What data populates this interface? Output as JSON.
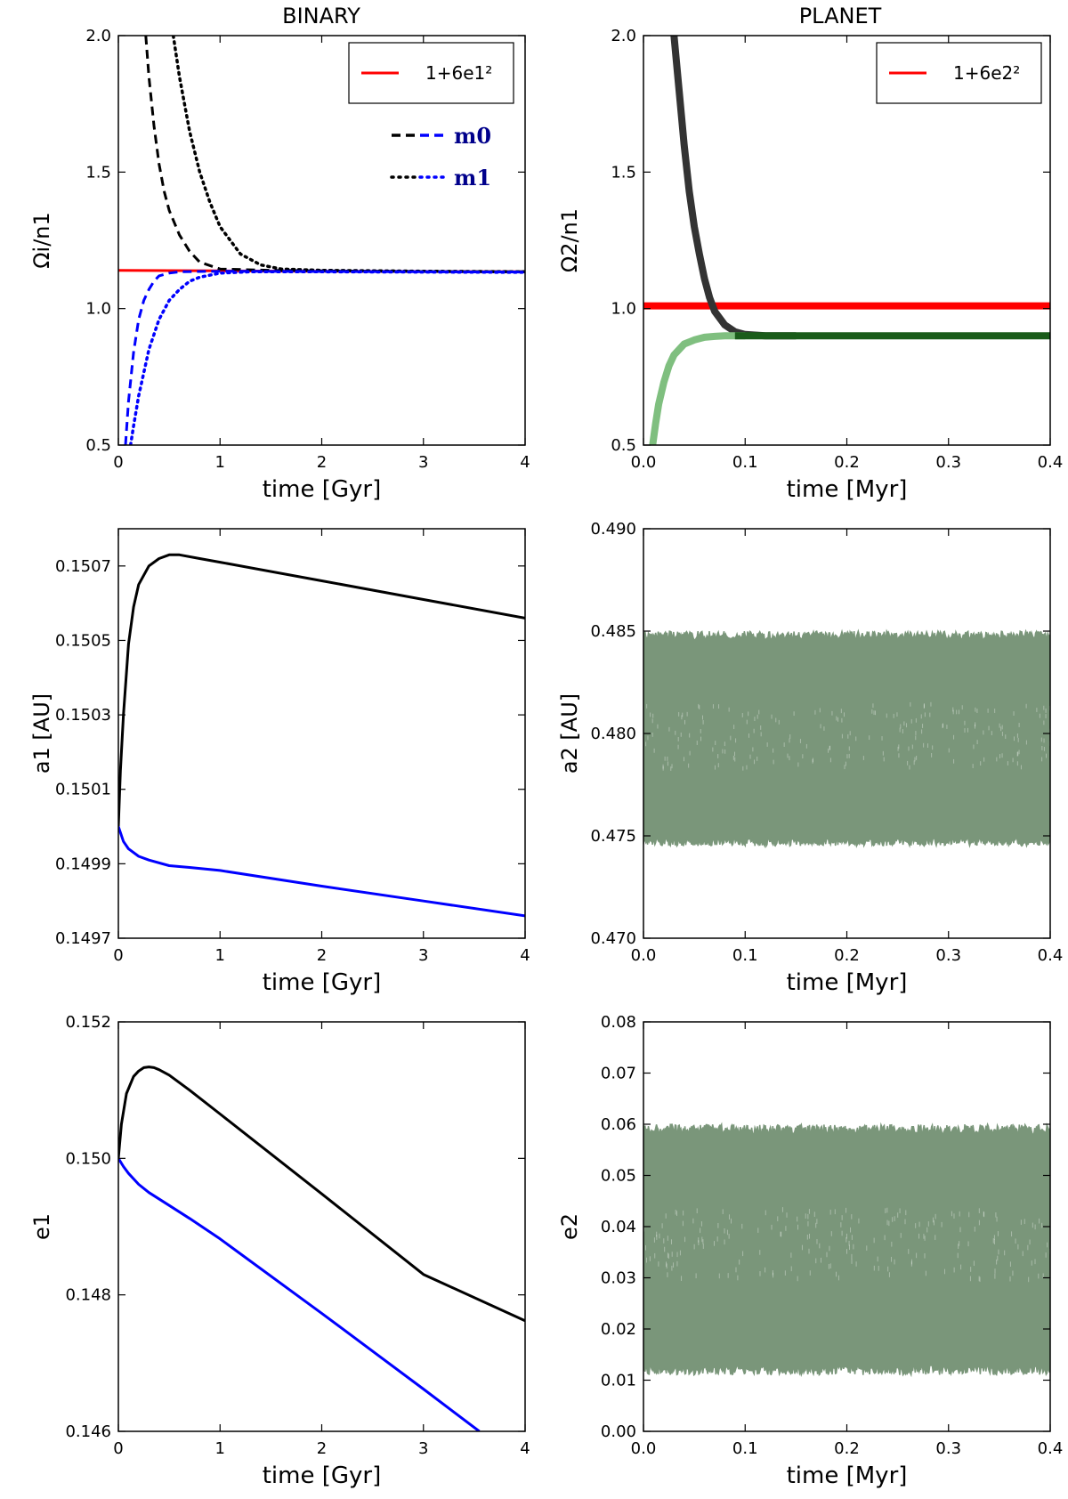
{
  "column_titles": {
    "left": "BINARY",
    "right": "PLANET"
  },
  "colors": {
    "red": "#ff0000",
    "black": "#000000",
    "blue": "#0000ff",
    "darkgray": "#333333",
    "darkgreen": "#1a5c1a",
    "lightgreen": "#7fbf7f",
    "grayedgreen": "#7a967a"
  },
  "chart_data": [
    {
      "type": "line",
      "title": "BINARY",
      "xlabel": "time [Gyr]",
      "ylabel": "Ωi/n1",
      "xlim": [
        0,
        4
      ],
      "ylim": [
        0.5,
        2.0
      ],
      "xticks": [
        "0",
        "1",
        "2",
        "3",
        "4"
      ],
      "yticks": [
        "0.5",
        "1.0",
        "1.5",
        "2.0"
      ],
      "legend": [
        {
          "label": "1+6e1²",
          "color": "#ff0000",
          "style": "solid"
        }
      ],
      "legend2": [
        {
          "label": "m0",
          "style": "dashed"
        },
        {
          "label": "m1",
          "style": "dotted"
        }
      ],
      "series": [
        {
          "name": "1+6e1²",
          "color": "#ff0000",
          "style": "solid",
          "x": [
            0,
            1,
            2,
            3,
            4
          ],
          "y": [
            1.14,
            1.138,
            1.137,
            1.136,
            1.135
          ]
        },
        {
          "name": "m0 (black)",
          "color": "#000000",
          "style": "dashed",
          "x": [
            0.27,
            0.3,
            0.35,
            0.4,
            0.45,
            0.5,
            0.6,
            0.7,
            0.8,
            1.0,
            1.5,
            2,
            3,
            4
          ],
          "y": [
            2.0,
            1.85,
            1.67,
            1.53,
            1.43,
            1.36,
            1.27,
            1.21,
            1.17,
            1.145,
            1.14,
            1.138,
            1.136,
            1.135
          ]
        },
        {
          "name": "m1 (black)",
          "color": "#000000",
          "style": "dotted",
          "x": [
            0.54,
            0.6,
            0.7,
            0.8,
            0.9,
            1.0,
            1.2,
            1.4,
            1.6,
            2,
            3,
            4
          ],
          "y": [
            2.0,
            1.85,
            1.65,
            1.5,
            1.39,
            1.3,
            1.2,
            1.16,
            1.145,
            1.14,
            1.137,
            1.135
          ]
        },
        {
          "name": "m0 (blue)",
          "color": "#0000ff",
          "style": "dashed",
          "x": [
            0.07,
            0.1,
            0.15,
            0.2,
            0.25,
            0.3,
            0.35,
            0.4,
            0.5,
            0.6,
            0.8,
            1.0,
            2,
            3,
            4
          ],
          "y": [
            0.5,
            0.66,
            0.84,
            0.96,
            1.03,
            1.07,
            1.1,
            1.12,
            1.13,
            1.135,
            1.136,
            1.137,
            1.136,
            1.135,
            1.134
          ]
        },
        {
          "name": "m1 (blue)",
          "color": "#0000ff",
          "style": "dotted",
          "x": [
            0.12,
            0.15,
            0.2,
            0.3,
            0.4,
            0.5,
            0.6,
            0.7,
            0.8,
            1.0,
            1.3,
            2,
            3,
            4
          ],
          "y": [
            0.5,
            0.57,
            0.68,
            0.85,
            0.96,
            1.03,
            1.07,
            1.1,
            1.115,
            1.13,
            1.135,
            1.135,
            1.134,
            1.133
          ]
        }
      ]
    },
    {
      "type": "line",
      "title": "PLANET",
      "xlabel": "time [Myr]",
      "ylabel": "Ω2/n1",
      "xlim": [
        0,
        0.4
      ],
      "ylim": [
        0.5,
        2.0
      ],
      "xticks": [
        "0.0",
        "0.1",
        "0.2",
        "0.3",
        "0.4"
      ],
      "yticks": [
        "0.5",
        "1.0",
        "1.5",
        "2.0"
      ],
      "legend": [
        {
          "label": "1+6e2²",
          "color": "#ff0000",
          "style": "solid"
        }
      ],
      "series": [
        {
          "name": "1+6e2²",
          "color": "#ff0000",
          "style": "thick",
          "x": [
            0,
            0.4
          ],
          "y": [
            1.01,
            1.01
          ]
        },
        {
          "name": "planet spin (black)",
          "color": "#333333",
          "style": "thick",
          "x": [
            0.03,
            0.035,
            0.04,
            0.045,
            0.05,
            0.055,
            0.06,
            0.065,
            0.07,
            0.08,
            0.09,
            0.1,
            0.12,
            0.15
          ],
          "y": [
            2.0,
            1.8,
            1.6,
            1.43,
            1.3,
            1.2,
            1.11,
            1.04,
            0.99,
            0.94,
            0.915,
            0.905,
            0.9,
            0.9
          ]
        },
        {
          "name": "planet spin (light green)",
          "color": "#7fbf7f",
          "style": "thick",
          "x": [
            0.009,
            0.012,
            0.015,
            0.02,
            0.025,
            0.03,
            0.04,
            0.05,
            0.06,
            0.07,
            0.08,
            0.09,
            0.1
          ],
          "y": [
            0.5,
            0.58,
            0.65,
            0.73,
            0.79,
            0.83,
            0.87,
            0.885,
            0.895,
            0.898,
            0.9,
            0.9,
            0.9
          ]
        },
        {
          "name": "converged (dark green)",
          "color": "#1a5c1a",
          "style": "thick",
          "x": [
            0.09,
            0.4
          ],
          "y": [
            0.9,
            0.9
          ]
        }
      ]
    },
    {
      "type": "line",
      "xlabel": "time [Gyr]",
      "ylabel": "a1 [AU]",
      "xlim": [
        0,
        4
      ],
      "ylim": [
        0.1497,
        0.1508
      ],
      "xticks": [
        "0",
        "1",
        "2",
        "3",
        "4"
      ],
      "yticks": [
        "0.1497",
        "0.1499",
        "0.1501",
        "0.1503",
        "0.1505",
        "0.1507"
      ],
      "series": [
        {
          "name": "black",
          "color": "#000000",
          "style": "solid",
          "x": [
            0,
            0.02,
            0.05,
            0.1,
            0.15,
            0.2,
            0.3,
            0.4,
            0.5,
            0.6,
            0.8,
            1.0,
            2,
            3,
            4
          ],
          "y": [
            0.15,
            0.15015,
            0.1503,
            0.15049,
            0.15059,
            0.15065,
            0.1507,
            0.15072,
            0.15073,
            0.15073,
            0.15072,
            0.15071,
            0.15066,
            0.15061,
            0.15056
          ]
        },
        {
          "name": "blue",
          "color": "#0000ff",
          "style": "solid",
          "x": [
            0,
            0.05,
            0.1,
            0.2,
            0.3,
            0.5,
            0.7,
            1.0,
            2,
            3,
            4
          ],
          "y": [
            0.15,
            0.14996,
            0.14994,
            0.14992,
            0.14991,
            0.149895,
            0.14989,
            0.149882,
            0.14984,
            0.1498,
            0.14976
          ]
        }
      ]
    },
    {
      "type": "line",
      "xlabel": "time [Myr]",
      "ylabel": "a2 [AU]",
      "xlim": [
        0,
        0.4
      ],
      "ylim": [
        0.47,
        0.49
      ],
      "xticks": [
        "0.0",
        "0.1",
        "0.2",
        "0.3",
        "0.4"
      ],
      "yticks": [
        "0.470",
        "0.475",
        "0.480",
        "0.485",
        "0.490"
      ],
      "series": [
        {
          "name": "a2 oscillation",
          "color": "#7a967a",
          "style": "band",
          "x": [
            0,
            0.4
          ],
          "y_min": 0.4745,
          "y_max": 0.485
        }
      ]
    },
    {
      "type": "line",
      "xlabel": "time [Gyr]",
      "ylabel": "e1",
      "xlim": [
        0,
        4
      ],
      "ylim": [
        0.146,
        0.152
      ],
      "xticks": [
        "0",
        "1",
        "2",
        "3",
        "4"
      ],
      "yticks": [
        "0.146",
        "0.148",
        "0.150",
        "0.152"
      ],
      "series": [
        {
          "name": "black",
          "color": "#000000",
          "style": "solid",
          "x": [
            0,
            0.03,
            0.08,
            0.15,
            0.2,
            0.25,
            0.3,
            0.35,
            0.4,
            0.5,
            0.7,
            1.0,
            2,
            3,
            4
          ],
          "y": [
            0.15,
            0.1505,
            0.15095,
            0.1512,
            0.15128,
            0.15133,
            0.15134,
            0.15133,
            0.1513,
            0.15122,
            0.151,
            0.15065,
            0.14948,
            0.1483,
            0.14762
          ]
        },
        {
          "name": "blue",
          "color": "#0000ff",
          "style": "solid",
          "x": [
            0,
            0.05,
            0.1,
            0.2,
            0.3,
            0.5,
            0.7,
            1.0,
            2,
            3,
            3.55
          ],
          "y": [
            0.15,
            0.14988,
            0.14978,
            0.14962,
            0.1495,
            0.14931,
            0.14912,
            0.14882,
            0.14773,
            0.14662,
            0.146
          ]
        }
      ]
    },
    {
      "type": "line",
      "xlabel": "time [Myr]",
      "ylabel": "e2",
      "xlim": [
        0,
        0.4
      ],
      "ylim": [
        0,
        0.08
      ],
      "xticks": [
        "0.0",
        "0.1",
        "0.2",
        "0.3",
        "0.4"
      ],
      "yticks": [
        "0.00",
        "0.01",
        "0.02",
        "0.03",
        "0.04",
        "0.05",
        "0.06",
        "0.07",
        "0.08"
      ],
      "series": [
        {
          "name": "e2 oscillation",
          "color": "#7a967a",
          "style": "band",
          "x": [
            0,
            0.4
          ],
          "y_min": 0.011,
          "y_max": 0.06
        }
      ]
    }
  ]
}
